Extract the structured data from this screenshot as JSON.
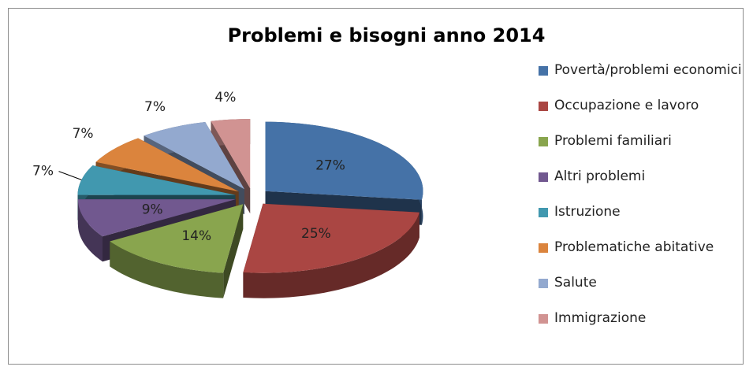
{
  "chart_data": {
    "type": "pie",
    "title": "Problemi e bisogni anno 2014",
    "categories": [
      "Povertà/problemi economici",
      "Occupazione e lavoro",
      "Problemi familiari",
      "Altri problemi",
      "Istruzione",
      "Problematiche abitative",
      "Salute",
      "Immigrazione"
    ],
    "values": [
      27,
      25,
      14,
      9,
      7,
      7,
      7,
      4
    ],
    "value_labels": [
      "27%",
      "25%",
      "14%",
      "9%",
      "7%",
      "7%",
      "7%",
      "4%"
    ],
    "colors": [
      "#4572a7",
      "#aa4643",
      "#89a54e",
      "#71588f",
      "#4198af",
      "#db843d",
      "#93a9cf",
      "#d19392"
    ],
    "legend": "right"
  }
}
